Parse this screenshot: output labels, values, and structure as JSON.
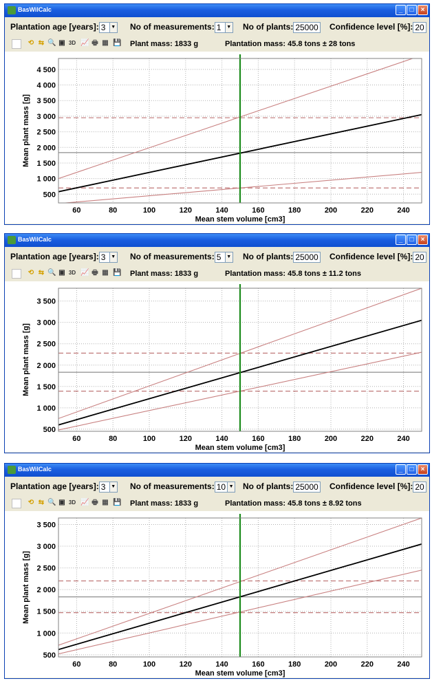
{
  "windows": [
    {
      "title": "BasWilCalc",
      "plantation_age_label": "Plantation age [years]:",
      "plantation_age": "3",
      "measurements_label": "No of measurements:",
      "measurements": "1",
      "plants_label": "No of plants:",
      "plants": "25000",
      "confidence_label": "Confidence level [%]:",
      "confidence": "20",
      "plant_mass": "Plant mass: 1833 g",
      "plantation_mass": "Plantation mass: 45.8 tons ± 28 tons",
      "chart_data": {
        "type": "line",
        "xlabel": "Mean stem volume [cm3]",
        "ylabel": "Mean plant mass [g]",
        "xlim": [
          50,
          250
        ],
        "ylim": [
          220,
          4850
        ],
        "x_ticks": [
          "60",
          "80",
          "100",
          "120",
          "140",
          "160",
          "180",
          "200",
          "220",
          "240"
        ],
        "y_ticks": [
          "500",
          "1 000",
          "1 500",
          "2 000",
          "2 500",
          "3 000",
          "3 500",
          "4 000",
          "4 500"
        ],
        "y_tick_values": [
          500,
          1000,
          1500,
          2000,
          2500,
          3000,
          3500,
          4000,
          4500
        ],
        "grid": true,
        "series": [
          {
            "x": [
              50,
              250
            ],
            "y": [
              1000,
              4950
            ]
          },
          {
            "x": [
              50,
              250
            ],
            "y": [
              580,
              3050
            ]
          },
          {
            "x": [
              50,
              250
            ],
            "y": [
              200,
              1200
            ]
          }
        ],
        "h_lines_dashed": [
          2950,
          700
        ],
        "h_line_solid": 1833,
        "v_line_x": 150,
        "colors": {
          "mean": "#000000",
          "bounds": "#c88080",
          "dashed": "#c07878",
          "vertical": "#1a8a1a",
          "hline": "#707070"
        }
      }
    },
    {
      "title": "BasWilCalc",
      "plantation_age_label": "Plantation age [years]:",
      "plantation_age": "3",
      "measurements_label": "No of measurements:",
      "measurements": "5",
      "plants_label": "No of plants:",
      "plants": "25000",
      "confidence_label": "Confidence level [%]:",
      "confidence": "20",
      "plant_mass": "Plant mass: 1833 g",
      "plantation_mass": "Plantation mass: 45.8 tons ± 11.2 tons",
      "chart_data": {
        "type": "line",
        "xlabel": "Mean stem volume [cm3]",
        "ylabel": "Mean plant mass [g]",
        "xlim": [
          50,
          250
        ],
        "ylim": [
          450,
          3800
        ],
        "x_ticks": [
          "60",
          "80",
          "100",
          "120",
          "140",
          "160",
          "180",
          "200",
          "220",
          "240"
        ],
        "y_ticks": [
          "500",
          "1 000",
          "1 500",
          "2 000",
          "2 500",
          "3 000",
          "3 500"
        ],
        "y_tick_values": [
          500,
          1000,
          1500,
          2000,
          2500,
          3000,
          3500
        ],
        "grid": true,
        "series": [
          {
            "x": [
              50,
              250
            ],
            "y": [
              750,
              3800
            ]
          },
          {
            "x": [
              50,
              250
            ],
            "y": [
              600,
              3050
            ]
          },
          {
            "x": [
              50,
              250
            ],
            "y": [
              480,
              2300
            ]
          }
        ],
        "h_lines_dashed": [
          2280,
          1390
        ],
        "h_line_solid": 1833,
        "v_line_x": 150,
        "colors": {
          "mean": "#000000",
          "bounds": "#c88080",
          "dashed": "#c07878",
          "vertical": "#1a8a1a",
          "hline": "#707070"
        }
      }
    },
    {
      "title": "BasWilCalc",
      "plantation_age_label": "Plantation age [years]:",
      "plantation_age": "3",
      "measurements_label": "No of measurements:",
      "measurements": "10",
      "plants_label": "No of plants:",
      "plants": "25000",
      "confidence_label": "Confidence level [%]:",
      "confidence": "20",
      "plant_mass": "Plant mass: 1833 g",
      "plantation_mass": "Plantation mass: 45.8 tons ± 8.92 tons",
      "chart_data": {
        "type": "line",
        "xlabel": "Mean stem volume [cm3]",
        "ylabel": "Mean plant mass [g]",
        "xlim": [
          50,
          250
        ],
        "ylim": [
          450,
          3650
        ],
        "x_ticks": [
          "60",
          "80",
          "100",
          "120",
          "140",
          "160",
          "180",
          "200",
          "220",
          "240"
        ],
        "y_ticks": [
          "500",
          "1 000",
          "1 500",
          "2 000",
          "2 500",
          "3 000",
          "3 500"
        ],
        "y_tick_values": [
          500,
          1000,
          1500,
          2000,
          2500,
          3000,
          3500
        ],
        "grid": true,
        "series": [
          {
            "x": [
              50,
              250
            ],
            "y": [
              720,
              3650
            ]
          },
          {
            "x": [
              50,
              250
            ],
            "y": [
              620,
              3050
            ]
          },
          {
            "x": [
              50,
              250
            ],
            "y": [
              520,
              2450
            ]
          }
        ],
        "h_lines_dashed": [
          2200,
          1470
        ],
        "h_line_solid": 1833,
        "v_line_x": 150,
        "colors": {
          "mean": "#000000",
          "bounds": "#c88080",
          "dashed": "#c07878",
          "vertical": "#1a8a1a",
          "hline": "#707070"
        }
      }
    }
  ]
}
